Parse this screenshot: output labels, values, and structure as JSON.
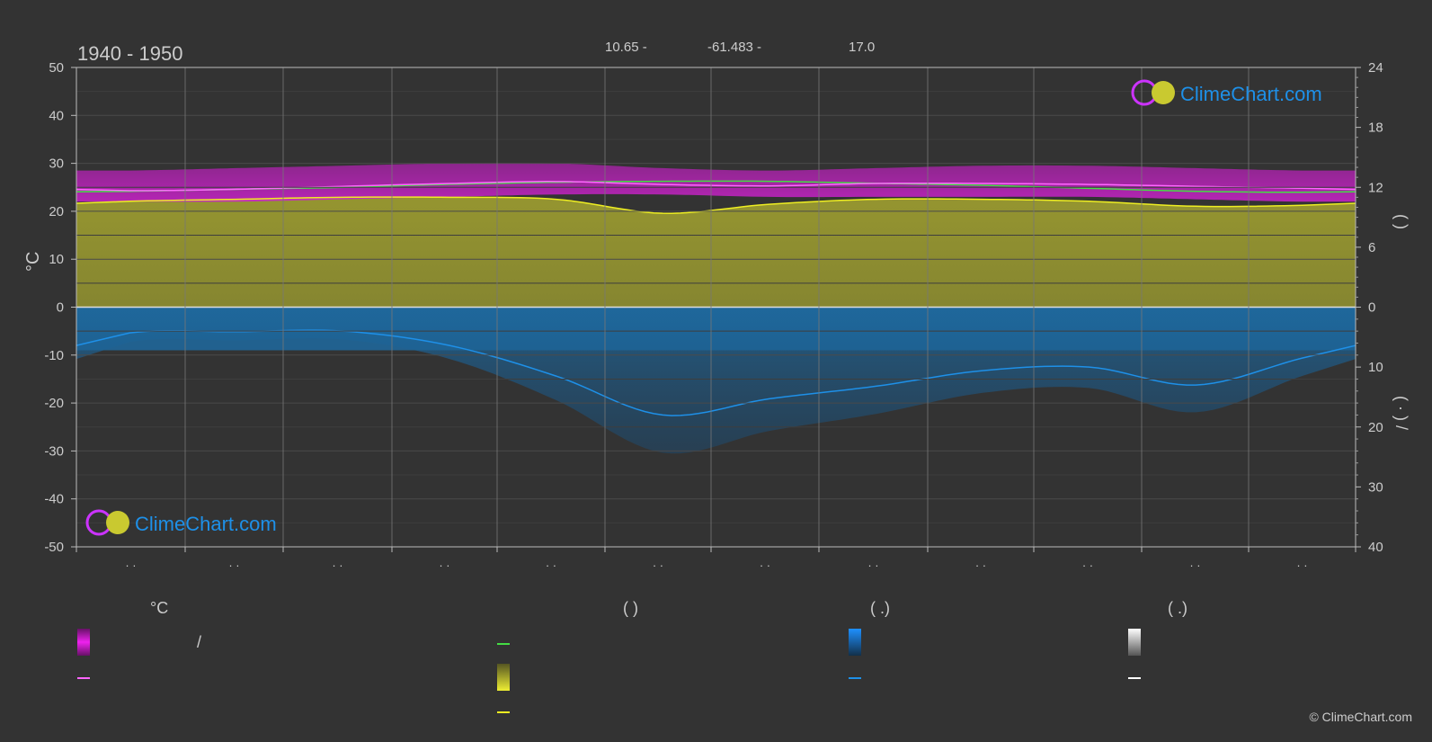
{
  "header": {
    "period": "1940 - 1950",
    "lat_text": "10.65 -",
    "lon_text": "-61.483 -",
    "elev_text": "17.0"
  },
  "brand": {
    "name": "ClimeChart.com",
    "copyright": "© ClimeChart.com"
  },
  "axis_left_label": "°C",
  "axis_right_top_label": "(     )",
  "axis_right_bottom_label": "(  ·  )  /",
  "month_tick_text": "· ·",
  "legend": {
    "col1_header": "°C",
    "col2_header": "(         )",
    "col3_header": "(   .)",
    "col4_header": "(   .)",
    "slash": "/"
  },
  "colors": {
    "background": "#333333",
    "temp_band": "#cc22cc",
    "temp_mean": "#ff66ff",
    "daylight": "#44dd44",
    "sunshine_fill": "#9a9a30",
    "sunshine_line": "#eeee22",
    "precip_fill": "#1e6aa0",
    "precip_line": "#1e90e8",
    "snow": "#ffffff"
  },
  "chart_data": {
    "type": "area",
    "title": "1940 - 1950",
    "ylabel": "°C",
    "ylim": [
      -50,
      50
    ],
    "y_ticks": [
      50,
      40,
      30,
      20,
      10,
      0,
      -10,
      -20,
      -30,
      -40,
      -50
    ],
    "right_axis_top": {
      "ticks": [
        24,
        18,
        12,
        6,
        0
      ],
      "range": [
        0,
        24
      ]
    },
    "right_axis_bottom": {
      "ticks": [
        0,
        10,
        20,
        30,
        40
      ],
      "range": [
        0,
        40
      ]
    },
    "month_positions": [
      0,
      1,
      2,
      3,
      4,
      5,
      6,
      7,
      8,
      9,
      10,
      11
    ],
    "series": [
      {
        "key": "temp_max",
        "values": [
          28.5,
          29,
          29.5,
          30,
          30,
          29,
          28.5,
          29,
          29.5,
          29.5,
          29,
          28.5
        ]
      },
      {
        "key": "temp_min",
        "values": [
          22,
          22,
          22.5,
          23,
          23.5,
          23.5,
          23,
          23,
          23,
          23,
          22.5,
          22
        ]
      },
      {
        "key": "temp_mean",
        "values": [
          24.3,
          24.6,
          25.2,
          25.8,
          26.2,
          25.6,
          25.3,
          25.8,
          25.8,
          25.6,
          25.2,
          24.8
        ]
      },
      {
        "key": "daylight_hours",
        "values": [
          11.6,
          11.8,
          12.0,
          12.3,
          12.5,
          12.6,
          12.6,
          12.4,
          12.2,
          11.9,
          11.6,
          11.5
        ]
      },
      {
        "key": "sunshine_hours",
        "values": [
          10.6,
          10.8,
          11.0,
          11.0,
          10.8,
          9.4,
          10.3,
          10.8,
          10.8,
          10.6,
          10.1,
          10.2
        ]
      },
      {
        "key": "precip_mm",
        "values": [
          4.3,
          4.1,
          4.0,
          6.4,
          11.5,
          18.0,
          15.3,
          13.2,
          10.6,
          10.0,
          13.0,
          8.5
        ]
      }
    ]
  }
}
